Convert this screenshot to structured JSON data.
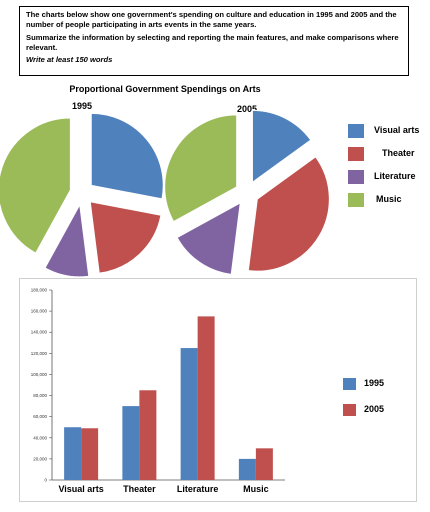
{
  "task": {
    "prompt": "The charts below show one government's spending on culture and education in 1995 and 2005 and the number of people participating in arts events in the same years.",
    "instruction": "Summarize the information by selecting and reporting the main features, and make comparisons where relevant.",
    "word_limit": "Write at least 150 words"
  },
  "pie_section": {
    "title": "Proportional Government Spendings on Arts"
  },
  "colors": {
    "visual_arts": "#4f81bd",
    "theater": "#c0504d",
    "literature": "#8064a2",
    "music": "#9bbb59"
  },
  "pie_legend": [
    "Visual arts",
    "Theater",
    "Literature",
    "Music"
  ],
  "bar_legend": [
    "1995",
    "2005"
  ],
  "chart_data": [
    {
      "type": "pie",
      "title": "1995",
      "categories": [
        "Visual arts",
        "Theater",
        "Literature",
        "Music"
      ],
      "values": [
        28,
        20,
        10,
        42
      ],
      "colors": [
        "#4f81bd",
        "#c0504d",
        "#8064a2",
        "#9bbb59"
      ]
    },
    {
      "type": "pie",
      "title": "2005",
      "categories": [
        "Visual arts",
        "Theater",
        "Literature",
        "Music"
      ],
      "values": [
        15,
        37,
        15,
        33
      ],
      "colors": [
        "#4f81bd",
        "#c0504d",
        "#8064a2",
        "#9bbb59"
      ]
    },
    {
      "type": "bar",
      "categories": [
        "Visual arts",
        "Theater",
        "Literature",
        "Music"
      ],
      "series": [
        {
          "name": "1995",
          "values": [
            50000,
            70000,
            125000,
            20000
          ],
          "color": "#4f81bd"
        },
        {
          "name": "2005",
          "values": [
            49000,
            85000,
            155000,
            30000
          ],
          "color": "#c0504d"
        }
      ],
      "yticks": [
        "0",
        "20,000",
        "40,000",
        "60,000",
        "80,000",
        "100,000",
        "120,000",
        "140,000",
        "160,000",
        "180,000"
      ],
      "ylim": [
        0,
        180000
      ],
      "grid": false,
      "legend": "right"
    }
  ]
}
